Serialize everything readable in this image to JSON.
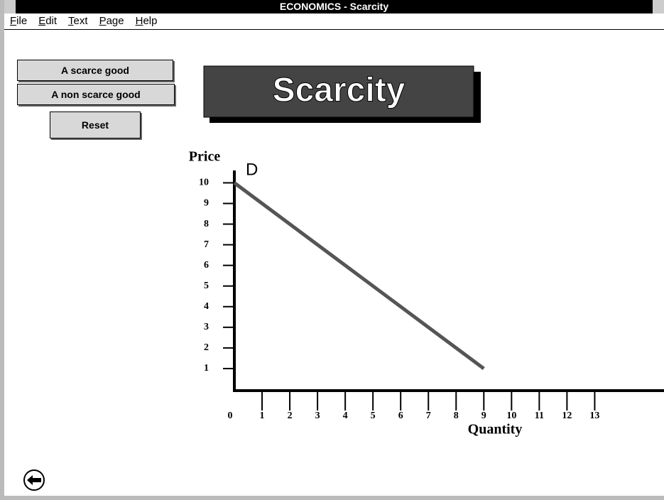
{
  "window": {
    "title": "ECONOMICS - Scarcity"
  },
  "menu": [
    "File",
    "Edit",
    "Text",
    "Page",
    "Help"
  ],
  "buttons": [
    "A scarce good",
    "A non scarce good",
    "Reset"
  ],
  "banner": "Scarcity",
  "chart": {
    "type": "line",
    "ylabel": "Price",
    "xlabel": "Quantity",
    "line_label": "D",
    "x": [
      0,
      9
    ],
    "values": [
      10,
      1
    ],
    "color": "#555555",
    "xlim": [
      0,
      15.5
    ],
    "ylim": [
      0,
      10.6
    ],
    "xticks": [
      0,
      1,
      2,
      3,
      4,
      5,
      6,
      7,
      8,
      9,
      10,
      11,
      12,
      13
    ],
    "yticks": [
      1,
      2,
      3,
      4,
      5,
      6,
      7,
      8,
      9,
      10
    ]
  }
}
